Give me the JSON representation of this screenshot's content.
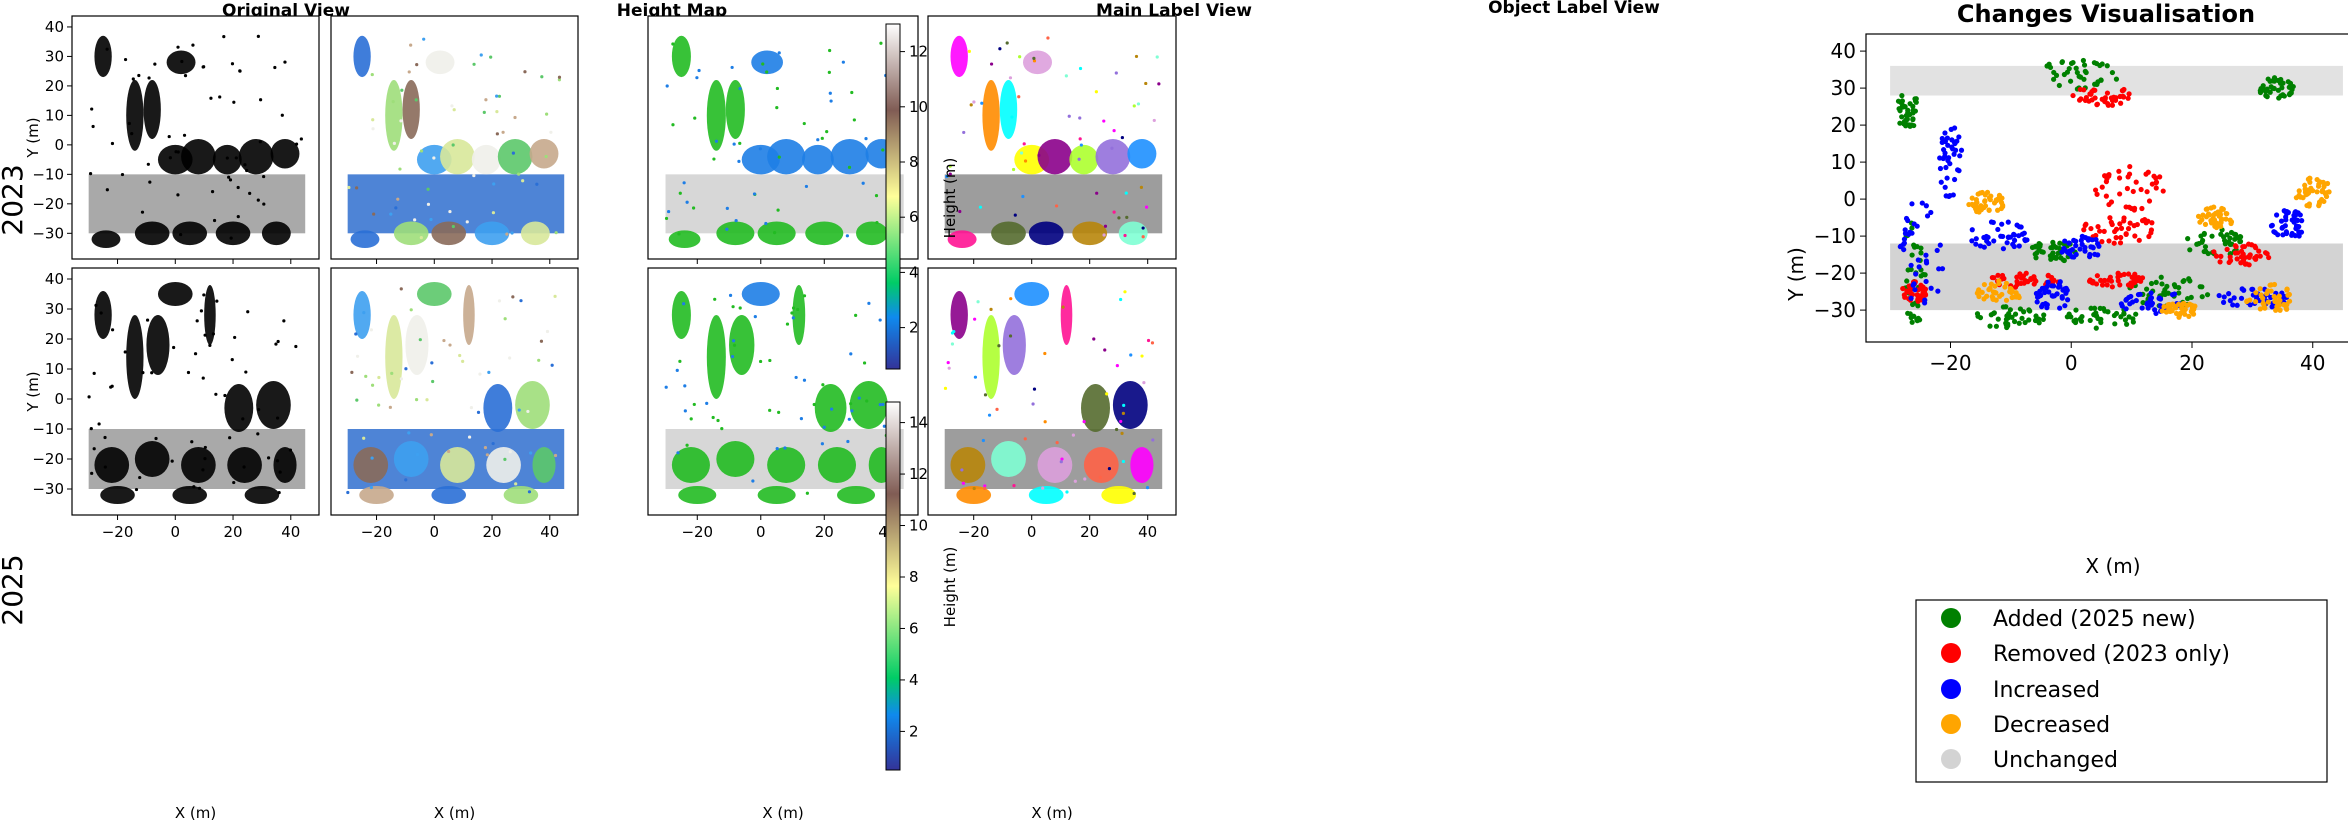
{
  "chart_data": {
    "type": "scatter",
    "panel_titles": [
      "Original View",
      "Height Map",
      "Main Label View",
      "Object Label View"
    ],
    "row_labels": [
      "2023",
      "2025"
    ],
    "xlabel": "X (m)",
    "ylabel": "Y (m)",
    "xlim": [
      -33,
      47
    ],
    "ylim": [
      -36,
      41
    ],
    "x_ticks": [
      -20,
      0,
      20,
      40
    ],
    "y_ticks": [
      -30,
      -20,
      -10,
      0,
      10,
      20,
      30,
      40
    ],
    "colorbars": [
      {
        "label": "Height (m)",
        "ticks": [
          2,
          4,
          6,
          8,
          10,
          12
        ],
        "range": [
          0.5,
          13
        ]
      },
      {
        "label": "Height (m)",
        "ticks": [
          2,
          4,
          6,
          8,
          10,
          12,
          14
        ],
        "range": [
          0.5,
          14.8
        ]
      }
    ],
    "changes": {
      "title": "Changes Visualisation",
      "xlabel": "X (m)",
      "ylabel": "Y (m)",
      "xlim": [
        -33,
        47
      ],
      "ylim": [
        -37,
        43
      ],
      "x_ticks": [
        -20,
        0,
        20,
        40
      ],
      "y_ticks": [
        -30,
        -20,
        -10,
        0,
        10,
        20,
        30,
        40
      ],
      "legend": [
        {
          "label": "Added (2025 new)",
          "color": "#008000"
        },
        {
          "label": "Removed (2023 only)",
          "color": "#ff0000"
        },
        {
          "label": "Increased",
          "color": "#0000ff"
        },
        {
          "label": "Decreased",
          "color": "#ffa500"
        },
        {
          "label": "Unchanged",
          "color": "#d3d3d3"
        }
      ],
      "legend_position": "bottom"
    }
  }
}
